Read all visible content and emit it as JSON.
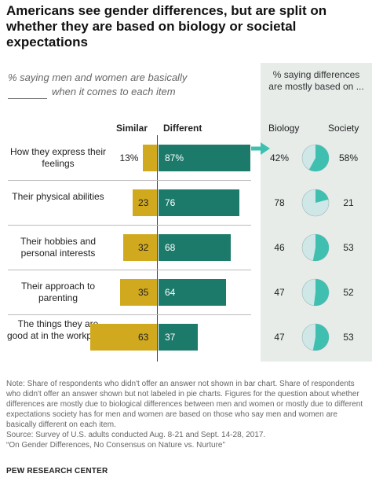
{
  "title": "Americans see gender differences, but are split on whether they are based on biology or societal expectations",
  "subtitle_line1": "% saying men and women are basically",
  "subtitle_line2": "when it comes to each item",
  "panel_header": "% saying differences are mostly based on ...",
  "columns": {
    "similar": "Similar",
    "different": "Different",
    "biology": "Biology",
    "society": "Society"
  },
  "colors": {
    "similar": "#d1a91f",
    "different": "#1c7a6b",
    "pie_light": "#cfe7e6",
    "pie_dark": "#3fbfb0",
    "panel": "#e7ece9"
  },
  "chart_data": {
    "type": "bar",
    "categories": [
      "How they express their feelings",
      "Their physical abilities",
      "Their hobbies and personal interests",
      "Their approach to parenting",
      "The things they are good at in the workplace"
    ],
    "series": [
      {
        "name": "Similar",
        "values": [
          13,
          23,
          32,
          35,
          63
        ],
        "labels": [
          "13%",
          "23",
          "32",
          "35",
          "63"
        ]
      },
      {
        "name": "Different",
        "values": [
          87,
          76,
          68,
          64,
          37
        ],
        "labels": [
          "87%",
          "76",
          "68",
          "64",
          "37"
        ]
      }
    ],
    "pies": [
      {
        "biology": 42,
        "society": 58,
        "biology_label": "42%",
        "society_label": "58%"
      },
      {
        "biology": 78,
        "society": 21,
        "biology_label": "78",
        "society_label": "21"
      },
      {
        "biology": 46,
        "society": 53,
        "biology_label": "46",
        "society_label": "53"
      },
      {
        "biology": 47,
        "society": 52,
        "biology_label": "47",
        "society_label": "52"
      },
      {
        "biology": 47,
        "society": 53,
        "biology_label": "47",
        "society_label": "53"
      }
    ]
  },
  "notes": [
    "Note: Share of respondents who didn't offer an answer not shown in bar chart. Share of respondents who didn't offer an answer shown but not labeled in pie charts. Figures for the question about whether differences are mostly due to biological differences between men and women or mostly due to different expectations society has for men and women are based on those who say men and women are basically different on each item.",
    "Source: Survey of U.S. adults conducted Aug. 8-21 and Sept. 14-28, 2017.",
    "“On Gender Differences, No Consensus on Nature vs. Nurture”"
  ],
  "footer": "PEW RESEARCH CENTER"
}
